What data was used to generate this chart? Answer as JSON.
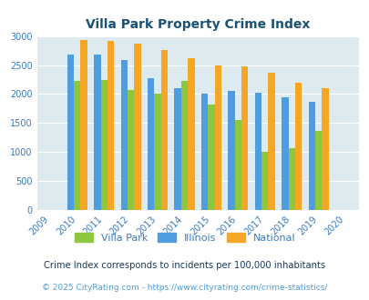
{
  "title": "Villa Park Property Crime Index",
  "years": [
    2009,
    2010,
    2011,
    2012,
    2013,
    2014,
    2015,
    2016,
    2017,
    2018,
    2019,
    2020
  ],
  "villa_park": [
    null,
    2220,
    2240,
    2070,
    2000,
    2230,
    1820,
    1550,
    1010,
    1060,
    1370,
    null
  ],
  "illinois": [
    null,
    2680,
    2680,
    2580,
    2280,
    2100,
    2000,
    2060,
    2020,
    1940,
    1860,
    null
  ],
  "national": [
    null,
    2930,
    2910,
    2870,
    2760,
    2620,
    2500,
    2470,
    2360,
    2200,
    2100,
    null
  ],
  "villa_park_color": "#8dc63f",
  "illinois_color": "#4d9de0",
  "national_color": "#f5a623",
  "bg_color": "#ddeaef",
  "title_color": "#1a5276",
  "axis_label_color": "#3a7abf",
  "note_text": "Crime Index corresponds to incidents per 100,000 inhabitants",
  "copyright_text": "© 2025 CityRating.com - https://www.cityrating.com/crime-statistics/",
  "note_color": "#1a3a5c",
  "copyright_color": "#4d9de0",
  "ylim": [
    0,
    3000
  ],
  "yticks": [
    0,
    500,
    1000,
    1500,
    2000,
    2500,
    3000
  ]
}
